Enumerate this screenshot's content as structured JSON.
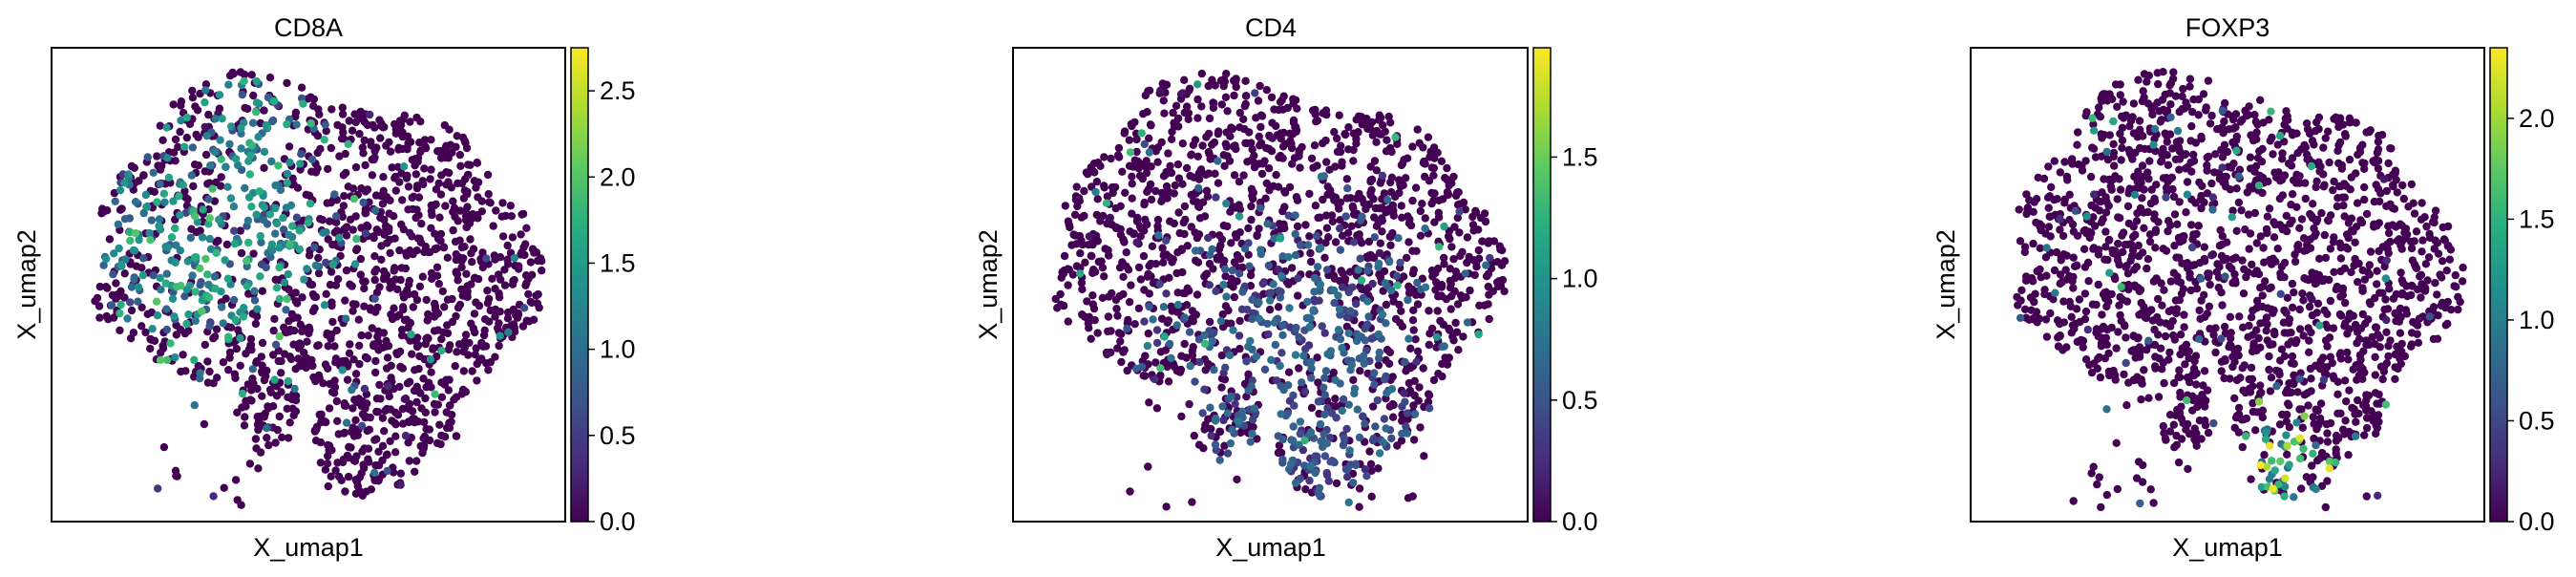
{
  "chart_data": [
    {
      "type": "scatter",
      "title": "CD8A",
      "xlabel": "X_umap1",
      "ylabel": "X_umap2",
      "colorbar": {
        "colormap": "viridis",
        "range": [
          0,
          2.75
        ],
        "ticks": [
          "0.0",
          "0.5",
          "1.0",
          "1.5",
          "2.0",
          "2.5"
        ],
        "tick_values": [
          0,
          0.5,
          1.0,
          1.5,
          2.0,
          2.5
        ]
      },
      "expression_pattern": "high in upper-left and left lobes",
      "hotspots": [
        {
          "x": 0.3,
          "y": 0.48,
          "spread": 0.1,
          "level": 1.45
        },
        {
          "x": 0.38,
          "y": 0.23,
          "spread": 0.08,
          "level": 1.35
        },
        {
          "x": 0.15,
          "y": 0.38,
          "spread": 0.07,
          "level": 1.05
        },
        {
          "x": 0.44,
          "y": 0.4,
          "spread": 0.06,
          "level": 1.2
        }
      ],
      "seed": 11
    },
    {
      "type": "scatter",
      "title": "CD4",
      "xlabel": "X_umap1",
      "ylabel": "X_umap2",
      "colorbar": {
        "colormap": "viridis",
        "range": [
          0,
          1.95
        ],
        "ticks": [
          "0.0",
          "0.5",
          "1.0",
          "1.5"
        ],
        "tick_values": [
          0,
          0.5,
          1.0,
          1.5
        ]
      },
      "expression_pattern": "sparse, scattered low expression",
      "hotspots": [
        {
          "x": 0.55,
          "y": 0.62,
          "spread": 0.14,
          "level": 0.55
        },
        {
          "x": 0.6,
          "y": 0.88,
          "spread": 0.1,
          "level": 0.5
        }
      ],
      "seed": 23
    },
    {
      "type": "scatter",
      "title": "FOXP3",
      "xlabel": "X_umap1",
      "ylabel": "X_umap2",
      "colorbar": {
        "colormap": "viridis",
        "range": [
          0,
          2.35
        ],
        "ticks": [
          "0.0",
          "0.5",
          "1.0",
          "1.5",
          "2.0"
        ],
        "tick_values": [
          0,
          0.5,
          1.0,
          1.5,
          2.0
        ]
      },
      "expression_pattern": "concentrated in bottom lobe",
      "hotspots": [
        {
          "x": 0.6,
          "y": 0.88,
          "spread": 0.06,
          "level": 1.7
        }
      ],
      "seed": 37
    }
  ]
}
